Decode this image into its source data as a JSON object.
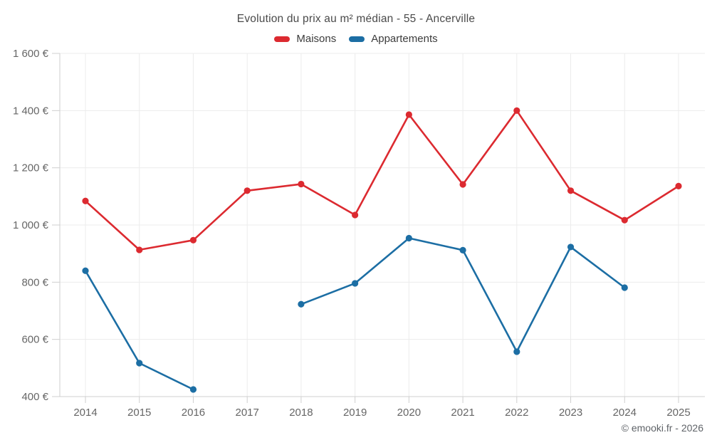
{
  "chart": {
    "title": "Evolution du prix au m² médian - 55 - Ancerville"
  },
  "legend": {
    "items": [
      {
        "label": "Maisons",
        "color": "#dc2a30"
      },
      {
        "label": "Appartements",
        "color": "#1c6ea4"
      }
    ]
  },
  "footer": {
    "copyright": "© emooki.fr - 2026"
  },
  "colors": {
    "maisons": "#dc2a30",
    "appartements": "#1c6ea4",
    "gridline": "#ececec",
    "axis_line": "#cfcfcf",
    "tick_text": "#666666",
    "title_text": "#4a4a4a"
  },
  "chart_data": {
    "type": "line",
    "title": "Evolution du prix au m² médian - 55 - Ancerville",
    "x": [
      "2014",
      "2015",
      "2016",
      "2017",
      "2018",
      "2019",
      "2020",
      "2021",
      "2022",
      "2023",
      "2024",
      "2025"
    ],
    "series": [
      {
        "name": "Maisons",
        "color": "#dc2a30",
        "values": [
          1084,
          913,
          947,
          1120,
          1143,
          1035,
          1386,
          1142,
          1400,
          1120,
          1017,
          1136
        ]
      },
      {
        "name": "Appartements",
        "color": "#1c6ea4",
        "values": [
          840,
          517,
          425,
          null,
          723,
          796,
          954,
          912,
          557,
          923,
          781,
          null
        ]
      }
    ],
    "ylim": [
      400,
      1600
    ],
    "yticks": [
      400,
      600,
      800,
      1000,
      1200,
      1400,
      1600
    ],
    "ytick_labels": [
      "400 €",
      "600 €",
      "800 €",
      "1 000 €",
      "1 200 €",
      "1 400 €",
      "1 600 €"
    ],
    "y_unit": "€",
    "grid": true,
    "legend_position": "top",
    "annotations": [
      "© emooki.fr - 2026"
    ]
  }
}
